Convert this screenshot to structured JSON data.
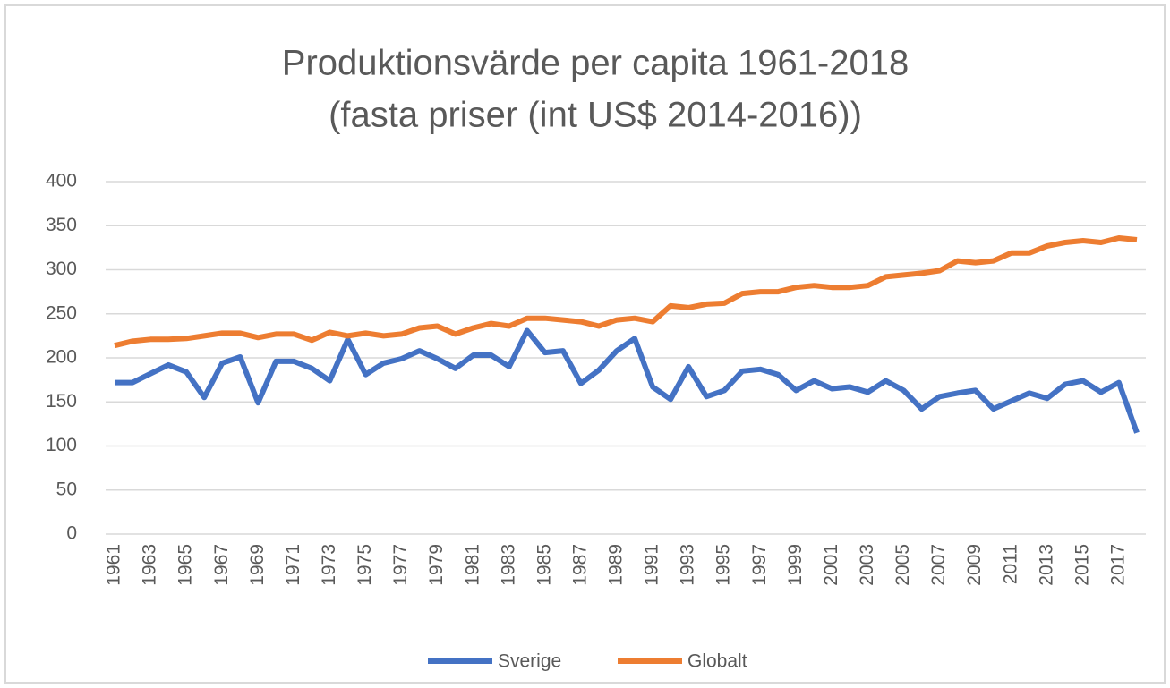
{
  "chart_data": {
    "type": "line",
    "title": "Produktionsvärde per capita 1961-2018",
    "subtitle": "(fasta priser (int US$ 2014-2016))",
    "categories": [
      "1961",
      null,
      "1963",
      null,
      "1965",
      null,
      "1967",
      null,
      "1969",
      null,
      "1971",
      null,
      "1973",
      null,
      "1975",
      null,
      "1977",
      null,
      "1979",
      null,
      "1981",
      null,
      "1983",
      null,
      "1985",
      null,
      "1987",
      null,
      "1989",
      null,
      "1991",
      null,
      "1993",
      null,
      "1995",
      null,
      "1997",
      null,
      "1999",
      null,
      "2001",
      null,
      "2003",
      null,
      "2005",
      null,
      "2007",
      null,
      "2009",
      null,
      "2011",
      null,
      "2013",
      null,
      "2015",
      null,
      "2017",
      null
    ],
    "series": [
      {
        "name": "Sverige",
        "color": "#4472c4",
        "values": [
          172,
          172,
          182,
          192,
          184,
          155,
          194,
          201,
          149,
          196,
          196,
          188,
          174,
          221,
          181,
          194,
          199,
          208,
          199,
          188,
          203,
          203,
          190,
          231,
          206,
          208,
          171,
          186,
          208,
          222,
          167,
          153,
          190,
          156,
          163,
          185,
          187,
          181,
          163,
          174,
          165,
          167,
          161,
          174,
          163,
          142,
          156,
          160,
          163,
          142,
          151,
          160,
          154,
          170,
          174,
          161,
          172,
          115
        ]
      },
      {
        "name": "Globalt",
        "color": "#ed7d31",
        "values": [
          214,
          219,
          221,
          221,
          222,
          225,
          228,
          228,
          223,
          227,
          227,
          220,
          229,
          225,
          228,
          225,
          227,
          234,
          236,
          227,
          234,
          239,
          236,
          245,
          245,
          243,
          241,
          236,
          243,
          245,
          241,
          259,
          257,
          261,
          262,
          273,
          275,
          275,
          280,
          282,
          280,
          280,
          282,
          292,
          294,
          296,
          299,
          310,
          308,
          310,
          319,
          319,
          327,
          331,
          333,
          331,
          336,
          334
        ]
      }
    ],
    "ylim": [
      0,
      400
    ],
    "yticks": [
      0,
      50,
      100,
      150,
      200,
      250,
      300,
      350,
      400
    ],
    "grid": true,
    "legend": "bottom"
  }
}
